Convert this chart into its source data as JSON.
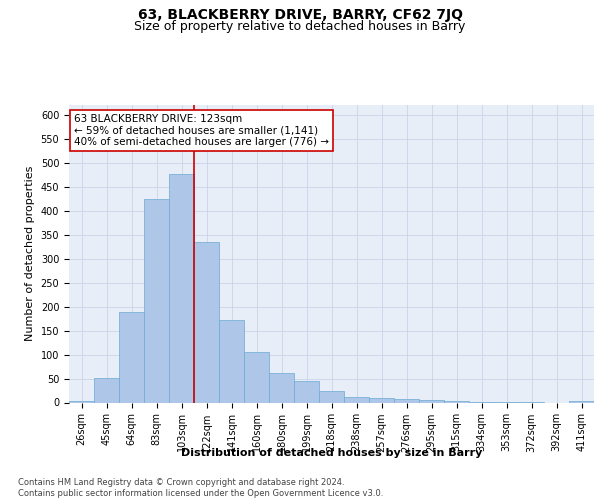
{
  "title_line1": "63, BLACKBERRY DRIVE, BARRY, CF62 7JQ",
  "title_line2": "Size of property relative to detached houses in Barry",
  "xlabel": "Distribution of detached houses by size in Barry",
  "ylabel": "Number of detached properties",
  "categories": [
    "26sqm",
    "45sqm",
    "64sqm",
    "83sqm",
    "103sqm",
    "122sqm",
    "141sqm",
    "160sqm",
    "180sqm",
    "199sqm",
    "218sqm",
    "238sqm",
    "257sqm",
    "276sqm",
    "295sqm",
    "315sqm",
    "334sqm",
    "353sqm",
    "372sqm",
    "392sqm",
    "411sqm"
  ],
  "values": [
    4,
    52,
    188,
    425,
    477,
    335,
    172,
    106,
    62,
    45,
    24,
    11,
    9,
    7,
    5,
    4,
    2,
    1,
    1,
    0,
    4
  ],
  "bar_color": "#aec6e8",
  "bar_edge_color": "#6aaad4",
  "bar_width": 1.0,
  "vline_color": "#cc0000",
  "vline_x_index": 4.5,
  "annotation_text": "63 BLACKBERRY DRIVE: 123sqm\n← 59% of detached houses are smaller (1,141)\n40% of semi-detached houses are larger (776) →",
  "annotation_box_color": "#ffffff",
  "annotation_box_edge": "#cc0000",
  "ylim": [
    0,
    620
  ],
  "yticks": [
    0,
    50,
    100,
    150,
    200,
    250,
    300,
    350,
    400,
    450,
    500,
    550,
    600
  ],
  "grid_color": "#c8d4e8",
  "bg_color": "#e8eef8",
  "footer": "Contains HM Land Registry data © Crown copyright and database right 2024.\nContains public sector information licensed under the Open Government Licence v3.0.",
  "title_fontsize": 10,
  "subtitle_fontsize": 9,
  "label_fontsize": 8,
  "tick_fontsize": 7,
  "footer_fontsize": 6
}
